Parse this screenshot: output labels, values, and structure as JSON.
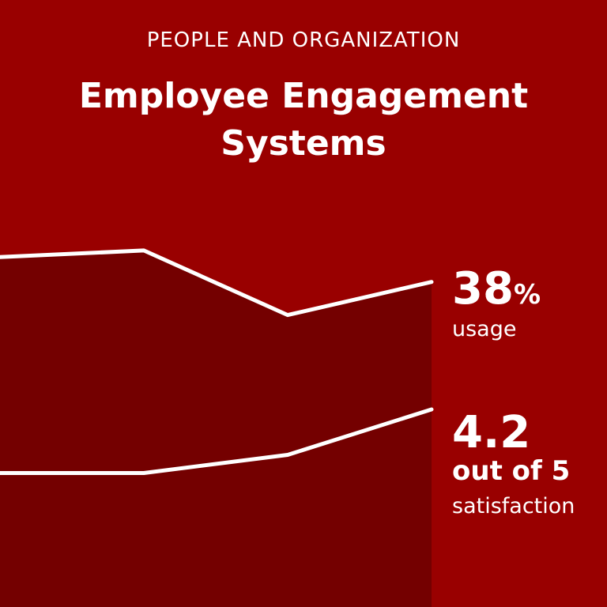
{
  "header": {
    "kicker": "PEOPLE AND ORGANIZATION",
    "title": "Employee Engagement Systems"
  },
  "stats": {
    "usage": {
      "value": "38",
      "unit": "%",
      "label": "usage"
    },
    "satisfaction": {
      "value": "4.2",
      "scale": "out of 5",
      "label": "satisfaction"
    }
  },
  "colors": {
    "background": "#990000",
    "area_fill": "#740000",
    "line": "#ffffff",
    "text": "#ffffff"
  },
  "chart_data": {
    "type": "line",
    "title": "Employee Engagement Systems",
    "xlabel": "",
    "ylabel": "",
    "grid": false,
    "legend": "none",
    "x": [
      0,
      1,
      2,
      3
    ],
    "series": [
      {
        "name": "usage",
        "unit": "%",
        "values": [
          39.5,
          39.9,
          36.0,
          38.0
        ]
      },
      {
        "name": "satisfaction",
        "unit": "out of 5",
        "values": [
          3.85,
          3.85,
          3.95,
          4.2
        ]
      }
    ],
    "ylim_usage": [
      20,
      45
    ],
    "ylim_satisfaction": [
      3.0,
      4.6
    ]
  }
}
